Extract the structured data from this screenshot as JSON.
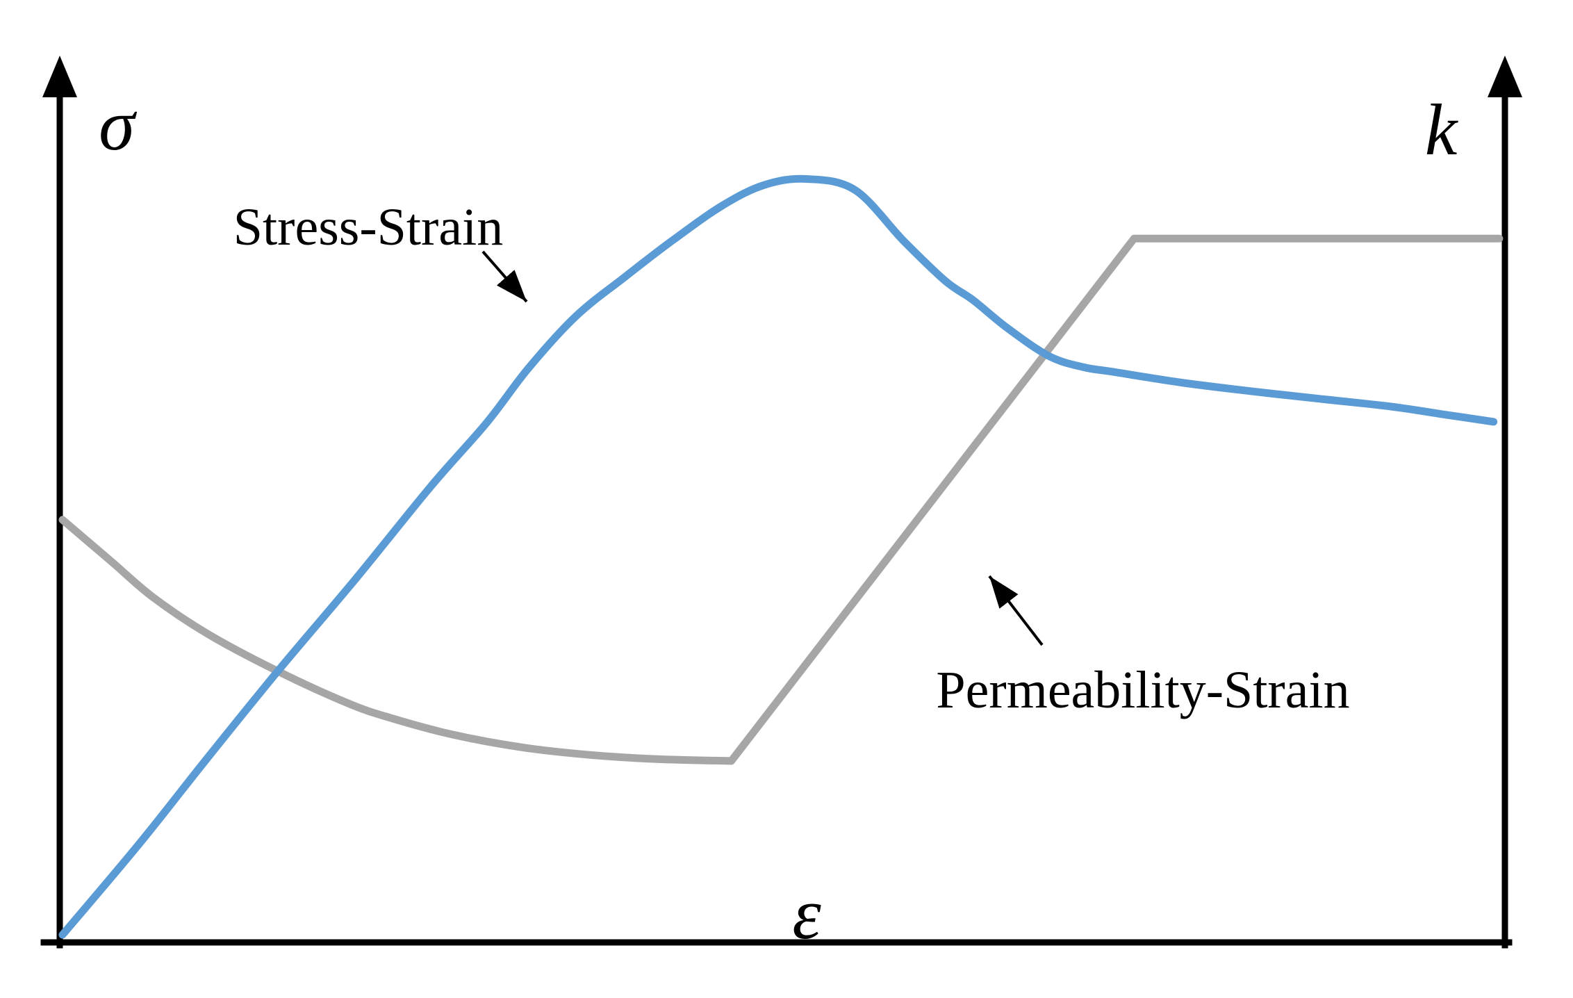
{
  "figure": {
    "background": "#ffffff",
    "axis_labels": {
      "left_vertical": "σ",
      "right_vertical": "k",
      "horizontal": "ε"
    },
    "annotations": {
      "stress_label": "Stress-Strain",
      "permeability_label": "Permeability-Strain"
    },
    "colors": {
      "stress_curve": "#5B9BD5",
      "permeability_curve": "#A6A6A6",
      "axis": "#000000",
      "annotation": "#000000"
    }
  },
  "chart_data": {
    "type": "line",
    "title": "",
    "xlabel": "ε",
    "ylabel_left": "σ",
    "ylabel_right": "k",
    "xlim": [
      0,
      1
    ],
    "ylim": [
      0,
      1
    ],
    "grid": false,
    "legend": "none (curves identified by in-plot text annotations with arrows)",
    "axes_style": "qualitative sketch; no ticks or numeric scale; upward arrowheads on both vertical axes",
    "series": [
      {
        "name": "Stress-Strain",
        "axis": "left",
        "color": "#5B9BD5",
        "shape": "rises almost linearly, peaks at ~0.90 of axis height near mid-strain, strain-softens, then gently declining residual plateau",
        "segments": [
          {
            "mode": "smooth",
            "points": [
              [
                0.0,
                0.009
              ],
              [
                0.053,
                0.115
              ],
              [
                0.101,
                0.217
              ],
              [
                0.15,
                0.319
              ],
              [
                0.203,
                0.425
              ],
              [
                0.256,
                0.535
              ],
              [
                0.295,
                0.61
              ],
              [
                0.324,
                0.674
              ],
              [
                0.357,
                0.735
              ],
              [
                0.391,
                0.781
              ],
              [
                0.425,
                0.825
              ],
              [
                0.459,
                0.865
              ],
              [
                0.488,
                0.889
              ],
              [
                0.517,
                0.896
              ],
              [
                0.551,
                0.883
              ],
              [
                0.585,
                0.823
              ],
              [
                0.614,
                0.776
              ],
              [
                0.633,
                0.754
              ],
              [
                0.657,
                0.721
              ],
              [
                0.686,
                0.688
              ],
              [
                0.71,
                0.675
              ],
              [
                0.729,
                0.67
              ],
              [
                0.778,
                0.657
              ],
              [
                0.826,
                0.647
              ],
              [
                0.874,
                0.638
              ],
              [
                0.923,
                0.629
              ],
              [
                0.959,
                0.62
              ],
              [
                0.995,
                0.611
              ]
            ]
          }
        ]
      },
      {
        "name": "Permeability-Strain",
        "axis": "right",
        "color": "#A6A6A6",
        "shape": "starts at ~0.50 height, convex decay to minimum ~0.21 at ~0.47 strain, sharp kink then linear rise to ~0.83, constant plateau to end",
        "segments": [
          {
            "mode": "smooth",
            "points": [
              [
                0.0,
                0.496
              ],
              [
                0.034,
                0.447
              ],
              [
                0.063,
                0.405
              ],
              [
                0.101,
                0.362
              ],
              [
                0.15,
                0.318
              ],
              [
                0.198,
                0.281
              ],
              [
                0.227,
                0.264
              ],
              [
                0.271,
                0.244
              ],
              [
                0.319,
                0.229
              ],
              [
                0.367,
                0.22
              ],
              [
                0.415,
                0.215
              ],
              [
                0.465,
                0.213
              ]
            ]
          },
          {
            "mode": "line",
            "points": [
              [
                0.745,
                0.826
              ],
              [
                0.999,
                0.826
              ]
            ]
          }
        ]
      }
    ]
  }
}
